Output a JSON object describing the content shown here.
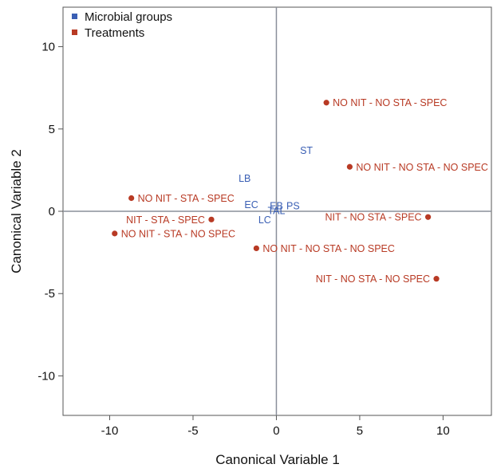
{
  "chart_data": {
    "type": "scatter",
    "xlabel": "Canonical Variable 1",
    "ylabel": "Canonical Variable 2",
    "xlim": [
      -12.8,
      12.9
    ],
    "ylim": [
      -12.4,
      12.4
    ],
    "xticks": [
      -10,
      -5,
      0,
      5,
      10
    ],
    "yticks": [
      -10,
      -5,
      0,
      5,
      10
    ],
    "grid": false,
    "reference_lines": {
      "x": 0,
      "y": 0
    },
    "legend_placement": "top-left",
    "legend": [
      {
        "name": "Microbial groups",
        "color": "#3a5fb4",
        "marker": "square"
      },
      {
        "name": "Treatments",
        "color": "#b83a24",
        "marker": "square"
      }
    ],
    "series": [
      {
        "name": "Microbial groups",
        "color": "#3a5fb4",
        "marker": "label",
        "points": [
          {
            "label": "ST",
            "x": 1.8,
            "y": 3.7
          },
          {
            "label": "LB",
            "x": -1.9,
            "y": 2.0
          },
          {
            "label": "EC",
            "x": -1.5,
            "y": 0.4
          },
          {
            "label": "EB",
            "x": 0.0,
            "y": 0.35
          },
          {
            "label": "PS",
            "x": 1.0,
            "y": 0.35
          },
          {
            "label": "TAL",
            "x": 0.0,
            "y": 0.05
          },
          {
            "label": "LC",
            "x": -0.7,
            "y": -0.5
          }
        ]
      },
      {
        "name": "Treatments",
        "color": "#b83a24",
        "marker": "circle",
        "points": [
          {
            "label": "NO NIT - NO STA - SPEC",
            "x": 3.0,
            "y": 6.6,
            "side": "right"
          },
          {
            "label": "NO NIT - NO STA - NO SPEC",
            "x": 4.4,
            "y": 2.7,
            "side": "right"
          },
          {
            "label": "NO NIT - STA - SPEC",
            "x": -8.7,
            "y": 0.8,
            "side": "right"
          },
          {
            "label": "NIT - STA - SPEC",
            "x": -3.9,
            "y": -0.5,
            "side": "left"
          },
          {
            "label": "NO NIT - STA - NO SPEC",
            "x": -9.7,
            "y": -1.35,
            "side": "right"
          },
          {
            "label": "NIT - NO STA - SPEC",
            "x": 9.1,
            "y": -0.35,
            "side": "left"
          },
          {
            "label": "NO NIT - NO STA - NO SPEC",
            "x": -1.2,
            "y": -2.25,
            "side": "right"
          },
          {
            "label": "NIT - NO STA - NO SPEC",
            "x": 9.6,
            "y": -4.1,
            "side": "left"
          }
        ]
      }
    ]
  }
}
